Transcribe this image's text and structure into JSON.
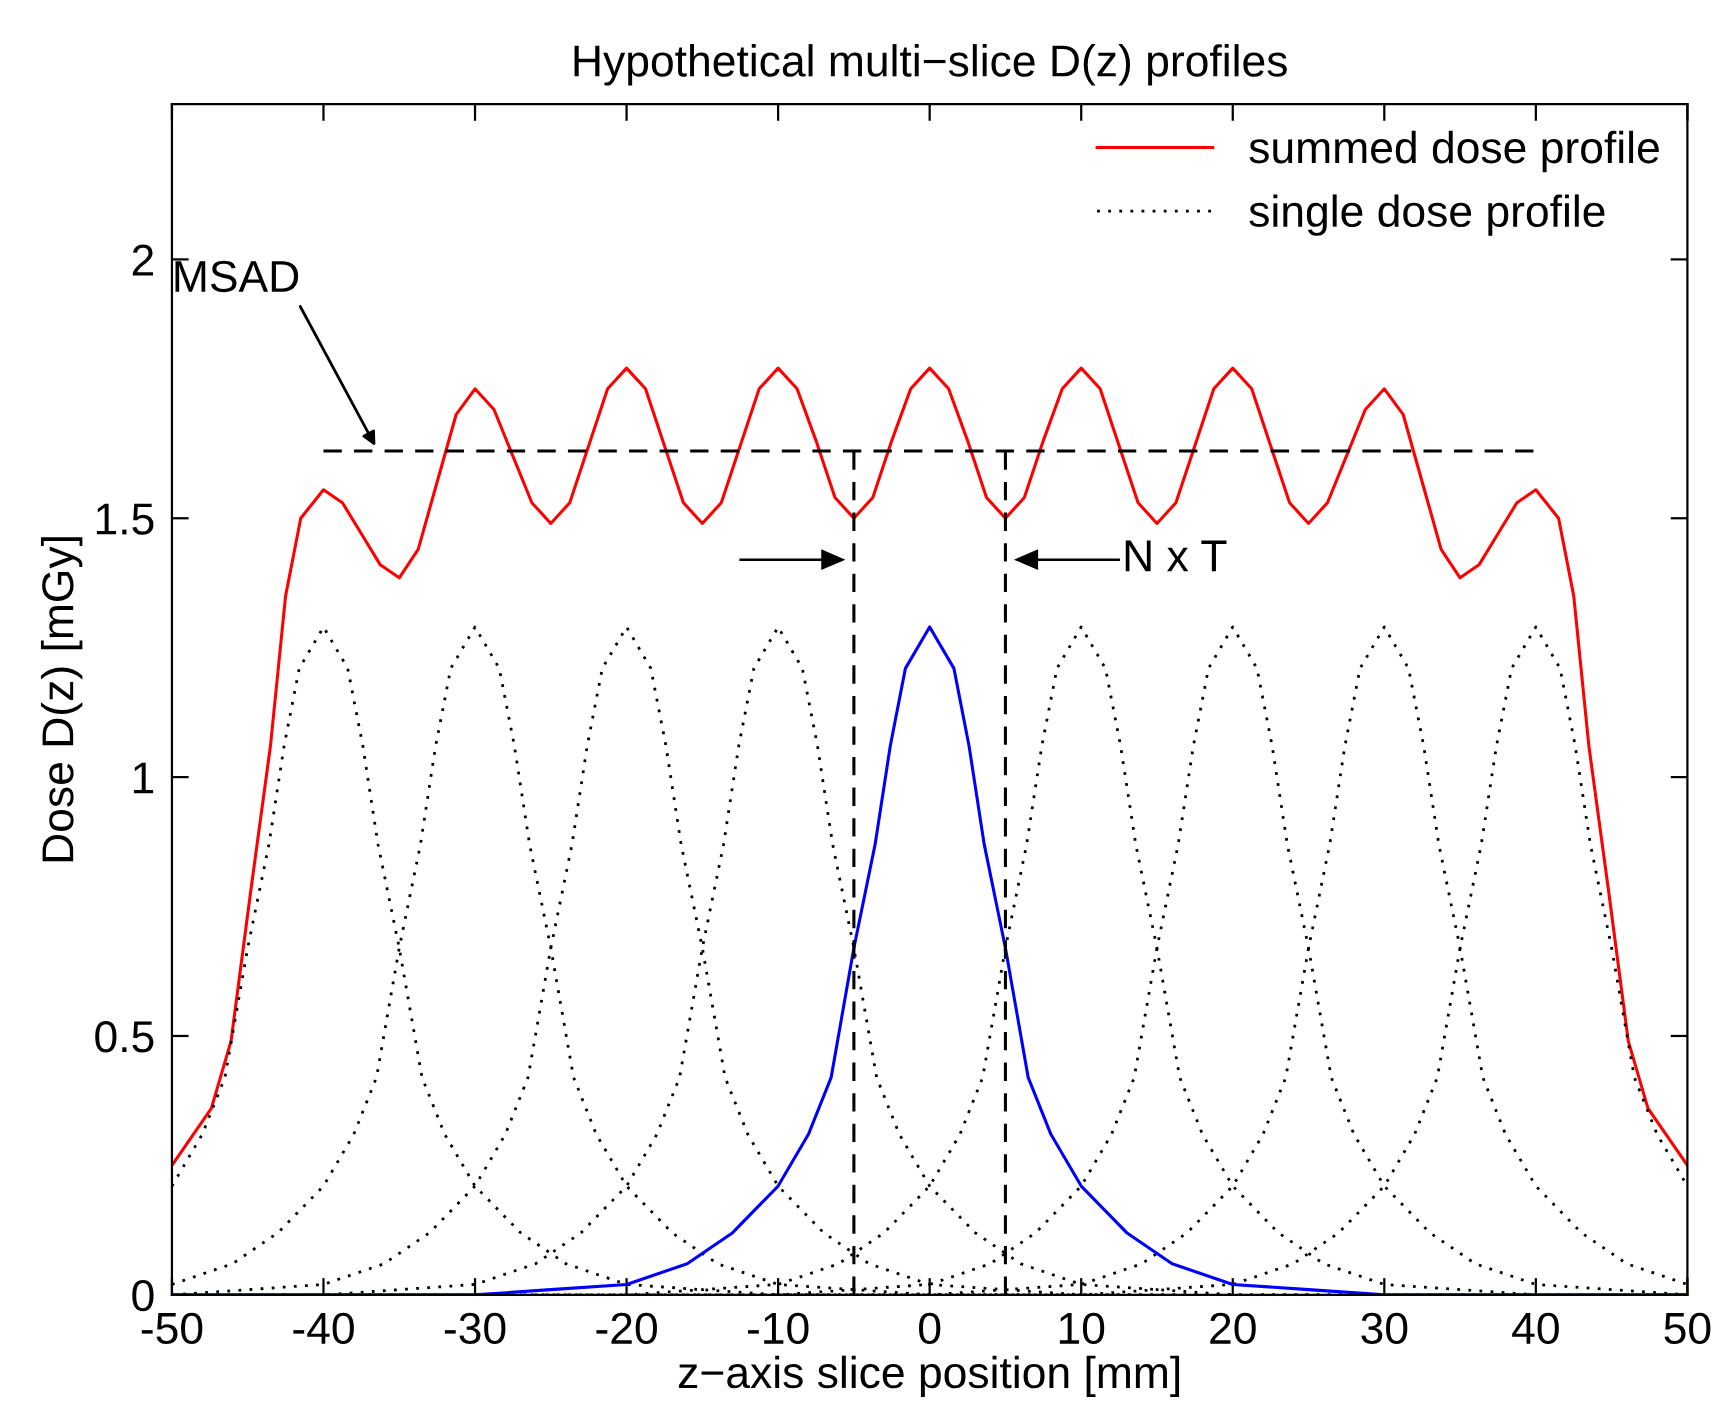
{
  "chart_data": {
    "type": "line",
    "title": "Hypothetical multi−slice D(z) profiles",
    "xlabel": "z−axis slice position [mm]",
    "ylabel": "Dose D(z) [mGy]",
    "xlim": [
      -50,
      50
    ],
    "xticks": [
      -50,
      -40,
      -30,
      -20,
      -10,
      0,
      10,
      20,
      30,
      40,
      50
    ],
    "ylim": [
      0,
      2.3
    ],
    "yticks": [
      0,
      0.5,
      1,
      1.5,
      2
    ],
    "legend": "top right",
    "series": [
      {
        "name": "summed dose profile",
        "color": "#ff0000",
        "line_style": "solid",
        "x": [
          -50,
          -47.4,
          -46.1,
          -44.8,
          -43.5,
          -42.5,
          -41.5,
          -40,
          -38.75,
          -37.5,
          -36.25,
          -35,
          -33.75,
          -32.5,
          -31.25,
          -30,
          -28.75,
          -27.5,
          -26.25,
          -25,
          -23.75,
          -22.5,
          -21.25,
          -20,
          -18.75,
          -17.5,
          -16.25,
          -15,
          -13.75,
          -12.5,
          -11.25,
          -10,
          -8.75,
          -7.5,
          -6.25,
          -5,
          -3.75,
          -2.5,
          -1.25,
          0,
          1.25,
          2.5,
          3.75,
          5,
          6.25,
          7.5,
          8.75,
          10,
          11.25,
          12.5,
          13.75,
          15,
          16.25,
          17.5,
          18.75,
          20,
          21.25,
          22.5,
          23.75,
          25,
          26.25,
          27.5,
          28.75,
          30,
          31.25,
          32.5,
          33.75,
          35,
          36.25,
          37.5,
          38.75,
          40,
          41.5,
          42.5,
          43.5,
          44.8,
          46.1,
          47.4,
          50
        ],
        "values": [
          0.25,
          0.36,
          0.49,
          0.78,
          1.06,
          1.35,
          1.5,
          1.555,
          1.53,
          1.47,
          1.41,
          1.385,
          1.44,
          1.57,
          1.7,
          1.75,
          1.71,
          1.62,
          1.53,
          1.49,
          1.53,
          1.64,
          1.75,
          1.79,
          1.75,
          1.64,
          1.53,
          1.49,
          1.53,
          1.64,
          1.75,
          1.79,
          1.75,
          1.65,
          1.54,
          1.5,
          1.54,
          1.65,
          1.75,
          1.79,
          1.75,
          1.65,
          1.54,
          1.5,
          1.54,
          1.65,
          1.75,
          1.79,
          1.75,
          1.64,
          1.53,
          1.49,
          1.53,
          1.64,
          1.75,
          1.79,
          1.75,
          1.64,
          1.53,
          1.49,
          1.53,
          1.62,
          1.71,
          1.75,
          1.7,
          1.57,
          1.44,
          1.385,
          1.41,
          1.47,
          1.53,
          1.555,
          1.5,
          1.35,
          1.06,
          0.78,
          0.49,
          0.36,
          0.25
        ]
      },
      {
        "name": "single dose profile",
        "color": "#000000",
        "line_style": "dotted",
        "x": [
          -50,
          -48,
          -46.5,
          -45,
          -43.6,
          -42.6,
          -41.6,
          -40,
          -38.4,
          -37.4,
          -36.4,
          -35,
          -33.5,
          -32,
          -30,
          -27,
          -24,
          -20,
          -15,
          -10,
          0,
          10
        ],
        "values": [
          0.21,
          0.31,
          0.42,
          0.67,
          0.87,
          1.06,
          1.21,
          1.29,
          1.21,
          1.06,
          0.87,
          0.67,
          0.42,
          0.31,
          0.21,
          0.12,
          0.06,
          0.02,
          0.01,
          0,
          0,
          0
        ]
      },
      {
        "color": "#000000",
        "line_style": "dotted",
        "x": [
          -50,
          -46,
          -43,
          -40,
          -38,
          -36.5,
          -35,
          -33.6,
          -32.6,
          -31.6,
          -30,
          -28.4,
          -27.4,
          -26.4,
          -25,
          -23.5,
          -22,
          -20,
          -17,
          -14,
          -10,
          -5,
          0,
          10,
          20
        ],
        "values": [
          0.02,
          0.06,
          0.12,
          0.21,
          0.31,
          0.42,
          0.67,
          0.87,
          1.06,
          1.21,
          1.29,
          1.21,
          1.06,
          0.87,
          0.67,
          0.42,
          0.31,
          0.21,
          0.12,
          0.06,
          0.02,
          0.01,
          0,
          0,
          0
        ]
      },
      {
        "color": "#000000",
        "line_style": "dotted",
        "x": [
          -50,
          -45,
          -40,
          -36,
          -33,
          -30,
          -28,
          -26.5,
          -25,
          -23.6,
          -22.6,
          -21.6,
          -20,
          -18.4,
          -17.4,
          -16.4,
          -15,
          -13.5,
          -12,
          -10,
          -7,
          -4,
          0,
          5,
          10,
          20,
          30
        ],
        "values": [
          0,
          0.01,
          0.02,
          0.06,
          0.12,
          0.21,
          0.31,
          0.42,
          0.67,
          0.87,
          1.06,
          1.21,
          1.29,
          1.21,
          1.06,
          0.87,
          0.67,
          0.42,
          0.31,
          0.21,
          0.12,
          0.06,
          0.02,
          0.01,
          0,
          0,
          0
        ]
      },
      {
        "color": "#000000",
        "line_style": "dotted",
        "x": [
          -50,
          -40,
          -35,
          -30,
          -26,
          -23,
          -20,
          -18,
          -16.5,
          -15,
          -13.6,
          -12.6,
          -11.6,
          -10,
          -8.4,
          -7.4,
          -6.4,
          -5,
          -3.5,
          -2,
          0,
          3,
          6,
          10,
          15,
          20,
          30,
          40
        ],
        "values": [
          0,
          0,
          0.01,
          0.02,
          0.06,
          0.12,
          0.21,
          0.31,
          0.42,
          0.67,
          0.87,
          1.06,
          1.21,
          1.29,
          1.21,
          1.06,
          0.87,
          0.67,
          0.42,
          0.31,
          0.21,
          0.12,
          0.06,
          0.02,
          0.01,
          0,
          0,
          0
        ]
      },
      {
        "color": "#000000",
        "line_style": "dotted",
        "x": [
          -40,
          -30,
          -20,
          -15,
          -10,
          -6,
          -3,
          0,
          2,
          3.5,
          5,
          6.4,
          7.4,
          8.4,
          10,
          11.6,
          12.6,
          13.6,
          15,
          16.5,
          18,
          20,
          23,
          26,
          30,
          35,
          40,
          50
        ],
        "values": [
          0,
          0,
          0,
          0.01,
          0.02,
          0.06,
          0.12,
          0.21,
          0.31,
          0.42,
          0.67,
          0.87,
          1.06,
          1.21,
          1.29,
          1.21,
          1.06,
          0.87,
          0.67,
          0.42,
          0.31,
          0.21,
          0.12,
          0.06,
          0.02,
          0.01,
          0,
          0
        ]
      },
      {
        "color": "#000000",
        "line_style": "dotted",
        "x": [
          -30,
          -20,
          -10,
          -5,
          0,
          4,
          7,
          10,
          12,
          13.5,
          15,
          16.4,
          17.4,
          18.4,
          20,
          21.6,
          22.6,
          23.6,
          25,
          26.5,
          28,
          30,
          33,
          36,
          40,
          45,
          50
        ],
        "values": [
          0,
          0,
          0,
          0.01,
          0.02,
          0.06,
          0.12,
          0.21,
          0.31,
          0.42,
          0.67,
          0.87,
          1.06,
          1.21,
          1.29,
          1.21,
          1.06,
          0.87,
          0.67,
          0.42,
          0.31,
          0.21,
          0.12,
          0.06,
          0.02,
          0.01,
          0
        ]
      },
      {
        "color": "#000000",
        "line_style": "dotted",
        "x": [
          -20,
          -10,
          0,
          5,
          10,
          14,
          17,
          20,
          22,
          23.5,
          25,
          26.4,
          27.4,
          28.4,
          30,
          31.6,
          32.6,
          33.6,
          35,
          36.5,
          38,
          40,
          43,
          46,
          50
        ],
        "values": [
          0,
          0,
          0,
          0.01,
          0.02,
          0.06,
          0.12,
          0.21,
          0.31,
          0.42,
          0.67,
          0.87,
          1.06,
          1.21,
          1.29,
          1.21,
          1.06,
          0.87,
          0.67,
          0.42,
          0.31,
          0.21,
          0.12,
          0.06,
          0.02
        ]
      },
      {
        "color": "#000000",
        "line_style": "dotted",
        "x": [
          -10,
          0,
          10,
          15,
          20,
          24,
          27,
          30,
          32,
          33.5,
          35,
          36.4,
          37.4,
          38.4,
          40,
          41.6,
          42.6,
          43.6,
          45,
          46.5,
          48,
          50
        ],
        "values": [
          0,
          0,
          0,
          0.01,
          0.02,
          0.06,
          0.12,
          0.21,
          0.31,
          0.42,
          0.67,
          0.87,
          1.06,
          1.21,
          1.29,
          1.21,
          1.06,
          0.87,
          0.67,
          0.42,
          0.31,
          0.21
        ]
      },
      {
        "color": "#0000ff",
        "line_style": "solid",
        "x": [
          -50,
          -40,
          -30,
          -25,
          -20,
          -16,
          -13,
          -10,
          -8,
          -6.5,
          -5,
          -3.6,
          -2.6,
          -1.6,
          0,
          1.6,
          2.6,
          3.6,
          5,
          6.5,
          8,
          10,
          13,
          16,
          20,
          25,
          30,
          40,
          50
        ],
        "values": [
          0,
          0,
          0,
          0.01,
          0.02,
          0.06,
          0.12,
          0.21,
          0.31,
          0.42,
          0.67,
          0.87,
          1.06,
          1.21,
          1.29,
          1.21,
          1.06,
          0.87,
          0.67,
          0.42,
          0.31,
          0.21,
          0.12,
          0.06,
          0.02,
          0.01,
          0,
          0,
          0
        ]
      },
      {
        "color": "#000000",
        "line_style": "dashed",
        "x": [
          -40,
          40
        ],
        "values": [
          1.63,
          1.63
        ]
      },
      {
        "color": "#000000",
        "line_style": "dashed",
        "x": [
          -5,
          -5
        ],
        "values": [
          0,
          1.63
        ]
      },
      {
        "color": "#000000",
        "line_style": "dashed",
        "x": [
          5,
          5
        ],
        "values": [
          0,
          1.63
        ]
      }
    ],
    "annotations": [
      {
        "text": "MSAD",
        "x": -36.4,
        "y": 1.63
      },
      {
        "text": "N x T",
        "x": 5,
        "y": 1.42
      }
    ]
  }
}
